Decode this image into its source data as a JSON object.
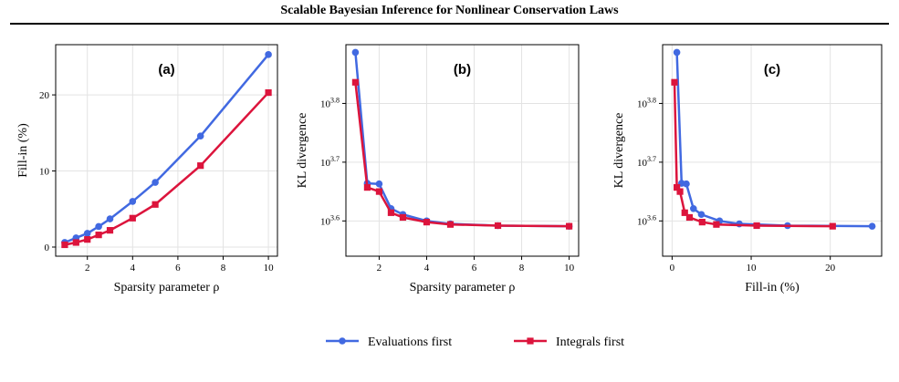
{
  "header": {
    "title": "Scalable Bayesian Inference for Nonlinear Conservation Laws"
  },
  "colors": {
    "evaluations_first": "#4169E1",
    "integrals_first": "#DC143C"
  },
  "legend": {
    "placement": "bottom-center",
    "items": [
      "Evaluations first",
      "Integrals first"
    ]
  },
  "caption": {
    "text": ""
  },
  "chart_data": [
    {
      "type": "line",
      "panel_label": "(a)",
      "xlabel": "Sparsity parameter ρ",
      "ylabel": "Fill-in (%)",
      "xlim": [
        0.6,
        10.4
      ],
      "ylim": [
        -1.2,
        26.6
      ],
      "xticks": [
        2,
        4,
        6,
        8,
        10
      ],
      "yticks": [
        0,
        10,
        20
      ],
      "log_y": false,
      "grid": true,
      "series": [
        {
          "name": "Evaluations first",
          "marker": "circle",
          "x": [
            1,
            1.5,
            2,
            2.5,
            3,
            4,
            5,
            7,
            10
          ],
          "y": [
            0.6,
            1.2,
            1.8,
            2.7,
            3.7,
            6.0,
            8.5,
            14.6,
            25.3
          ]
        },
        {
          "name": "Integrals first",
          "marker": "square",
          "x": [
            1,
            1.5,
            2,
            2.5,
            3,
            4,
            5,
            7,
            10
          ],
          "y": [
            0.3,
            0.6,
            1.0,
            1.6,
            2.2,
            3.8,
            5.6,
            10.7,
            20.3
          ]
        }
      ]
    },
    {
      "type": "line",
      "panel_label": "(b)",
      "xlabel": "Sparsity parameter ρ",
      "ylabel": "KL divergence",
      "xlim": [
        0.6,
        10.4
      ],
      "ylim": [
        3.54,
        3.9
      ],
      "xticks": [
        2,
        4,
        6,
        8,
        10
      ],
      "yticks": [
        3.6,
        3.7,
        3.8
      ],
      "ytick_labels": [
        "10",
        "10",
        "10"
      ],
      "ytick_exponents": [
        "3.6",
        "3.7",
        "3.8"
      ],
      "log_y": true,
      "grid": true,
      "series": [
        {
          "name": "Evaluations first",
          "marker": "circle",
          "x": [
            1,
            1.5,
            2,
            2.5,
            3,
            4,
            5,
            7,
            10
          ],
          "y": [
            3.887,
            3.664,
            3.663,
            3.621,
            3.611,
            3.6,
            3.595,
            3.592,
            3.591
          ]
        },
        {
          "name": "Integrals first",
          "marker": "square",
          "x": [
            1,
            1.5,
            2,
            2.5,
            3,
            4,
            5,
            7,
            10
          ],
          "y": [
            3.836,
            3.657,
            3.65,
            3.614,
            3.606,
            3.598,
            3.594,
            3.592,
            3.591
          ]
        }
      ]
    },
    {
      "type": "line",
      "panel_label": "(c)",
      "xlabel": "Fill-in (%)",
      "ylabel": "KL divergence",
      "xlim": [
        -1.2,
        26.5
      ],
      "ylim": [
        3.54,
        3.9
      ],
      "xticks": [
        0,
        10,
        20
      ],
      "yticks": [
        3.6,
        3.7,
        3.8
      ],
      "ytick_labels": [
        "10",
        "10",
        "10"
      ],
      "ytick_exponents": [
        "3.6",
        "3.7",
        "3.8"
      ],
      "log_y": true,
      "grid": true,
      "series": [
        {
          "name": "Evaluations first",
          "marker": "circle",
          "x": [
            0.6,
            1.2,
            1.8,
            2.7,
            3.7,
            6.0,
            8.5,
            14.6,
            25.3
          ],
          "y": [
            3.887,
            3.664,
            3.663,
            3.621,
            3.611,
            3.6,
            3.595,
            3.592,
            3.591
          ]
        },
        {
          "name": "Integrals first",
          "marker": "square",
          "x": [
            0.3,
            0.6,
            1.0,
            1.6,
            2.2,
            3.8,
            5.6,
            10.7,
            20.3
          ],
          "y": [
            3.836,
            3.657,
            3.65,
            3.614,
            3.606,
            3.598,
            3.594,
            3.592,
            3.591
          ]
        }
      ]
    }
  ]
}
